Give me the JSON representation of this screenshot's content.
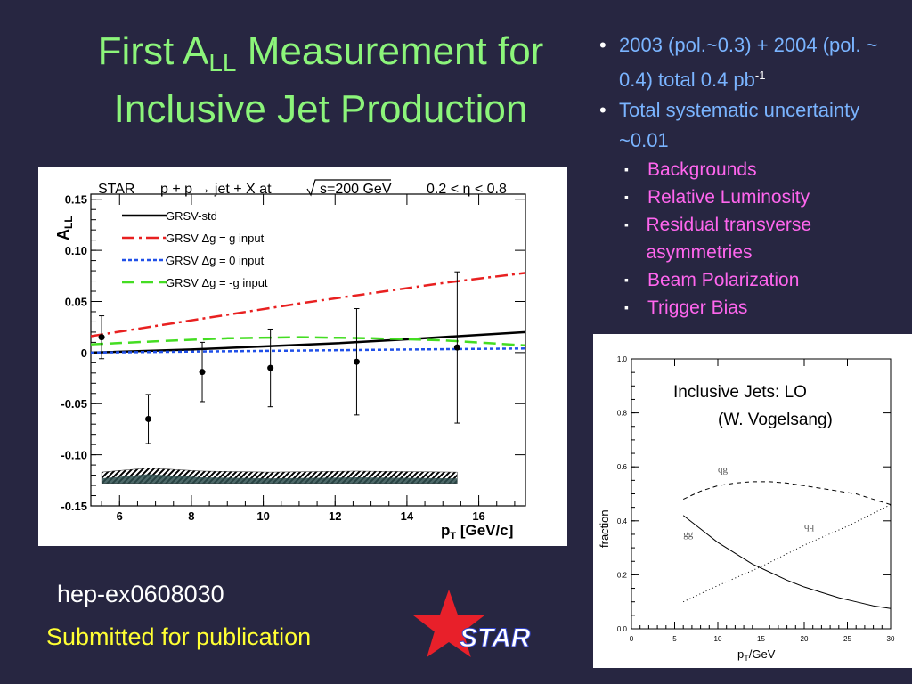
{
  "slide": {
    "title_pre": "First A",
    "title_sub": "LL",
    "title_post": " Measurement for",
    "title_line2": "Inclusive Jet Production",
    "bullets": [
      {
        "pre": "2003 (pol.~0.3) + 2004 (pol. ~ 0.4) total 0.4 pb",
        "sup": "-1"
      },
      {
        "text": "Total systematic uncertainty ~0.01"
      }
    ],
    "sub_bullets": [
      "Backgrounds",
      "Relative Luminosity",
      "Residual transverse asymmetries",
      "Beam Polarization",
      "Trigger Bias"
    ],
    "reference": "hep-ex0608030",
    "status": "Submitted for publication",
    "logo_text": "STAR",
    "colors": {
      "background": "#272641",
      "title": "#8cf57a",
      "bullet": "#7ab4ff",
      "sub_bullet": "#ff66ee",
      "status": "#ffff33",
      "star": "#e8202a"
    }
  },
  "chart_data": [
    {
      "type": "scatter",
      "header": {
        "star": "STAR",
        "reaction": "p + p → jet + X at",
        "energy": "s=200 GeV",
        "eta": "0.2 < η < 0.8"
      },
      "ylabel": "A",
      "ylabel_sub": "LL",
      "xlabel": "p",
      "xlabel_sub": "T",
      "xlabel_unit": " [GeV/c]",
      "xlim": [
        5.2,
        17.3
      ],
      "ylim": [
        -0.15,
        0.155
      ],
      "xticks": [
        "6",
        "8",
        "10",
        "12",
        "14",
        "16"
      ],
      "yticks": [
        "0.15",
        "0.10",
        "0.05",
        "0",
        "-0.05",
        "-0.10",
        "-0.15"
      ],
      "points": {
        "x": [
          5.5,
          6.8,
          8.3,
          10.2,
          12.6,
          15.4
        ],
        "y": [
          0.015,
          -0.065,
          -0.019,
          -0.015,
          -0.009,
          0.005
        ],
        "err": [
          0.021,
          0.024,
          0.029,
          0.038,
          0.052,
          0.074
        ]
      },
      "theory": [
        {
          "name": "GRSV-std",
          "color": "#000000",
          "dash": "",
          "x": [
            5.2,
            8,
            10,
            12,
            14,
            17.3
          ],
          "y": [
            0.0,
            0.003,
            0.006,
            0.009,
            0.013,
            0.02
          ]
        },
        {
          "name": "GRSV  Δg = g input",
          "color": "#e82020",
          "dash": "14,5,3,5",
          "x": [
            5.2,
            7,
            9,
            11,
            13,
            15,
            17.3
          ],
          "y": [
            0.016,
            0.026,
            0.037,
            0.048,
            0.058,
            0.068,
            0.078
          ]
        },
        {
          "name": "GRSV  Δg = 0 input",
          "color": "#2050e8",
          "dash": "4,3",
          "x": [
            5.2,
            8,
            11,
            14,
            17.3
          ],
          "y": [
            0.0,
            0.001,
            0.002,
            0.003,
            0.004
          ]
        },
        {
          "name": "GRSV  Δg = -g input",
          "color": "#44dd22",
          "dash": "14,7",
          "x": [
            5.2,
            7,
            9,
            11,
            13,
            15,
            17.3
          ],
          "y": [
            0.008,
            0.011,
            0.014,
            0.015,
            0.014,
            0.012,
            0.007
          ]
        }
      ],
      "systematic_band": {
        "x": [
          5.5,
          6.8,
          8.3,
          10.2,
          12.6,
          15.4
        ],
        "y_low": -0.128,
        "y_high": [
          -0.117,
          -0.113,
          -0.116,
          -0.117,
          -0.116,
          -0.117
        ]
      },
      "grid": false
    },
    {
      "type": "line",
      "annotation": [
        "Inclusive Jets: LO",
        "(W. Vogelsang)"
      ],
      "ylabel": "fraction",
      "xlabel": "p",
      "xlabel_sub": "T",
      "xlabel_unit": "/GeV",
      "xlim": [
        0,
        30
      ],
      "ylim": [
        0,
        1
      ],
      "xticks": [
        "0",
        "5",
        "10",
        "15",
        "20",
        "25",
        "30"
      ],
      "yticks": [
        "1.0",
        "0.8",
        "0.6",
        "0.4",
        "0.2",
        "0.0"
      ],
      "series": [
        {
          "name": "qg",
          "dash": "5,4",
          "label_at": [
            10,
            0.58
          ],
          "x": [
            6,
            8,
            10,
            12,
            14,
            16,
            18,
            20,
            22,
            24,
            26,
            28,
            30
          ],
          "y": [
            0.48,
            0.51,
            0.53,
            0.54,
            0.545,
            0.545,
            0.54,
            0.53,
            0.52,
            0.51,
            0.5,
            0.48,
            0.46
          ]
        },
        {
          "name": "gg",
          "dash": "",
          "label_at": [
            6,
            0.34
          ],
          "x": [
            6,
            8,
            10,
            12,
            14,
            16,
            18,
            20,
            22,
            24,
            26,
            28,
            30
          ],
          "y": [
            0.42,
            0.37,
            0.32,
            0.28,
            0.24,
            0.21,
            0.18,
            0.155,
            0.135,
            0.115,
            0.1,
            0.085,
            0.075
          ]
        },
        {
          "name": "qq",
          "dash": "1,3",
          "label_at": [
            20,
            0.37
          ],
          "x": [
            6,
            10,
            15,
            20,
            25,
            30
          ],
          "y": [
            0.1,
            0.16,
            0.23,
            0.31,
            0.38,
            0.46
          ]
        }
      ],
      "grid": false
    }
  ]
}
